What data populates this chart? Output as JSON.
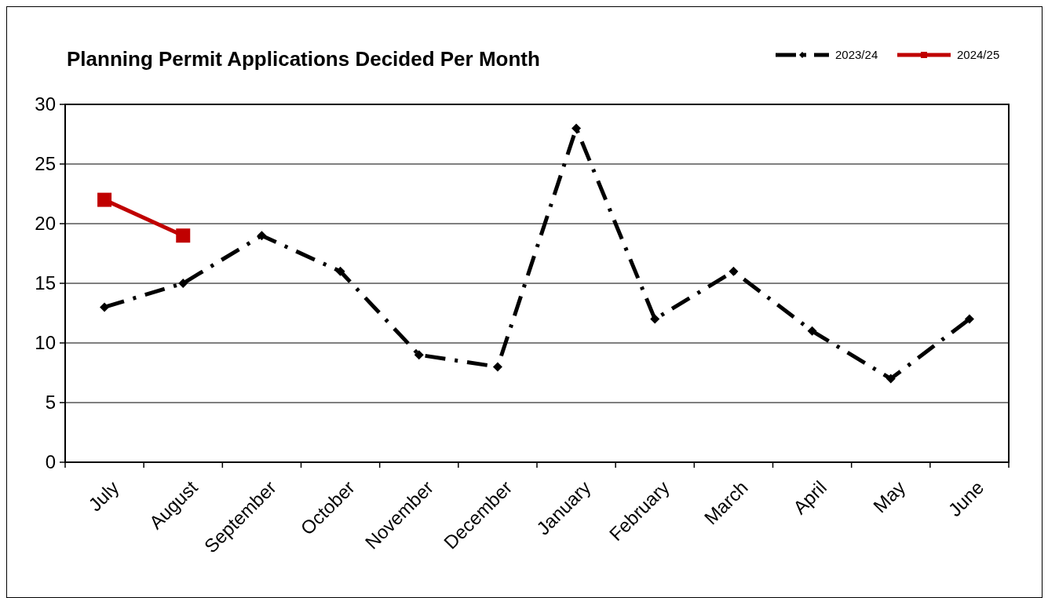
{
  "chart_data": {
    "type": "line",
    "title": "Planning Permit Applications Decided Per Month",
    "categories": [
      "July",
      "August",
      "September",
      "October",
      "November",
      "December",
      "January",
      "February",
      "March",
      "April",
      "May",
      "June"
    ],
    "series": [
      {
        "name": "2023/24",
        "color": "#000000",
        "values": [
          13,
          15,
          19,
          16,
          9,
          8,
          28,
          12,
          16,
          11,
          7,
          12
        ],
        "marker": "diamond",
        "line_style": "dashed"
      },
      {
        "name": "2024/25",
        "color": "#c00000",
        "values": [
          22,
          19,
          null,
          null,
          null,
          null,
          null,
          null,
          null,
          null,
          null,
          null
        ],
        "marker": "square",
        "line_style": "solid"
      }
    ],
    "ylim": [
      0,
      30
    ],
    "yticks": [
      0,
      5,
      10,
      15,
      20,
      25,
      30
    ],
    "grid": "y",
    "legend": "top right"
  }
}
